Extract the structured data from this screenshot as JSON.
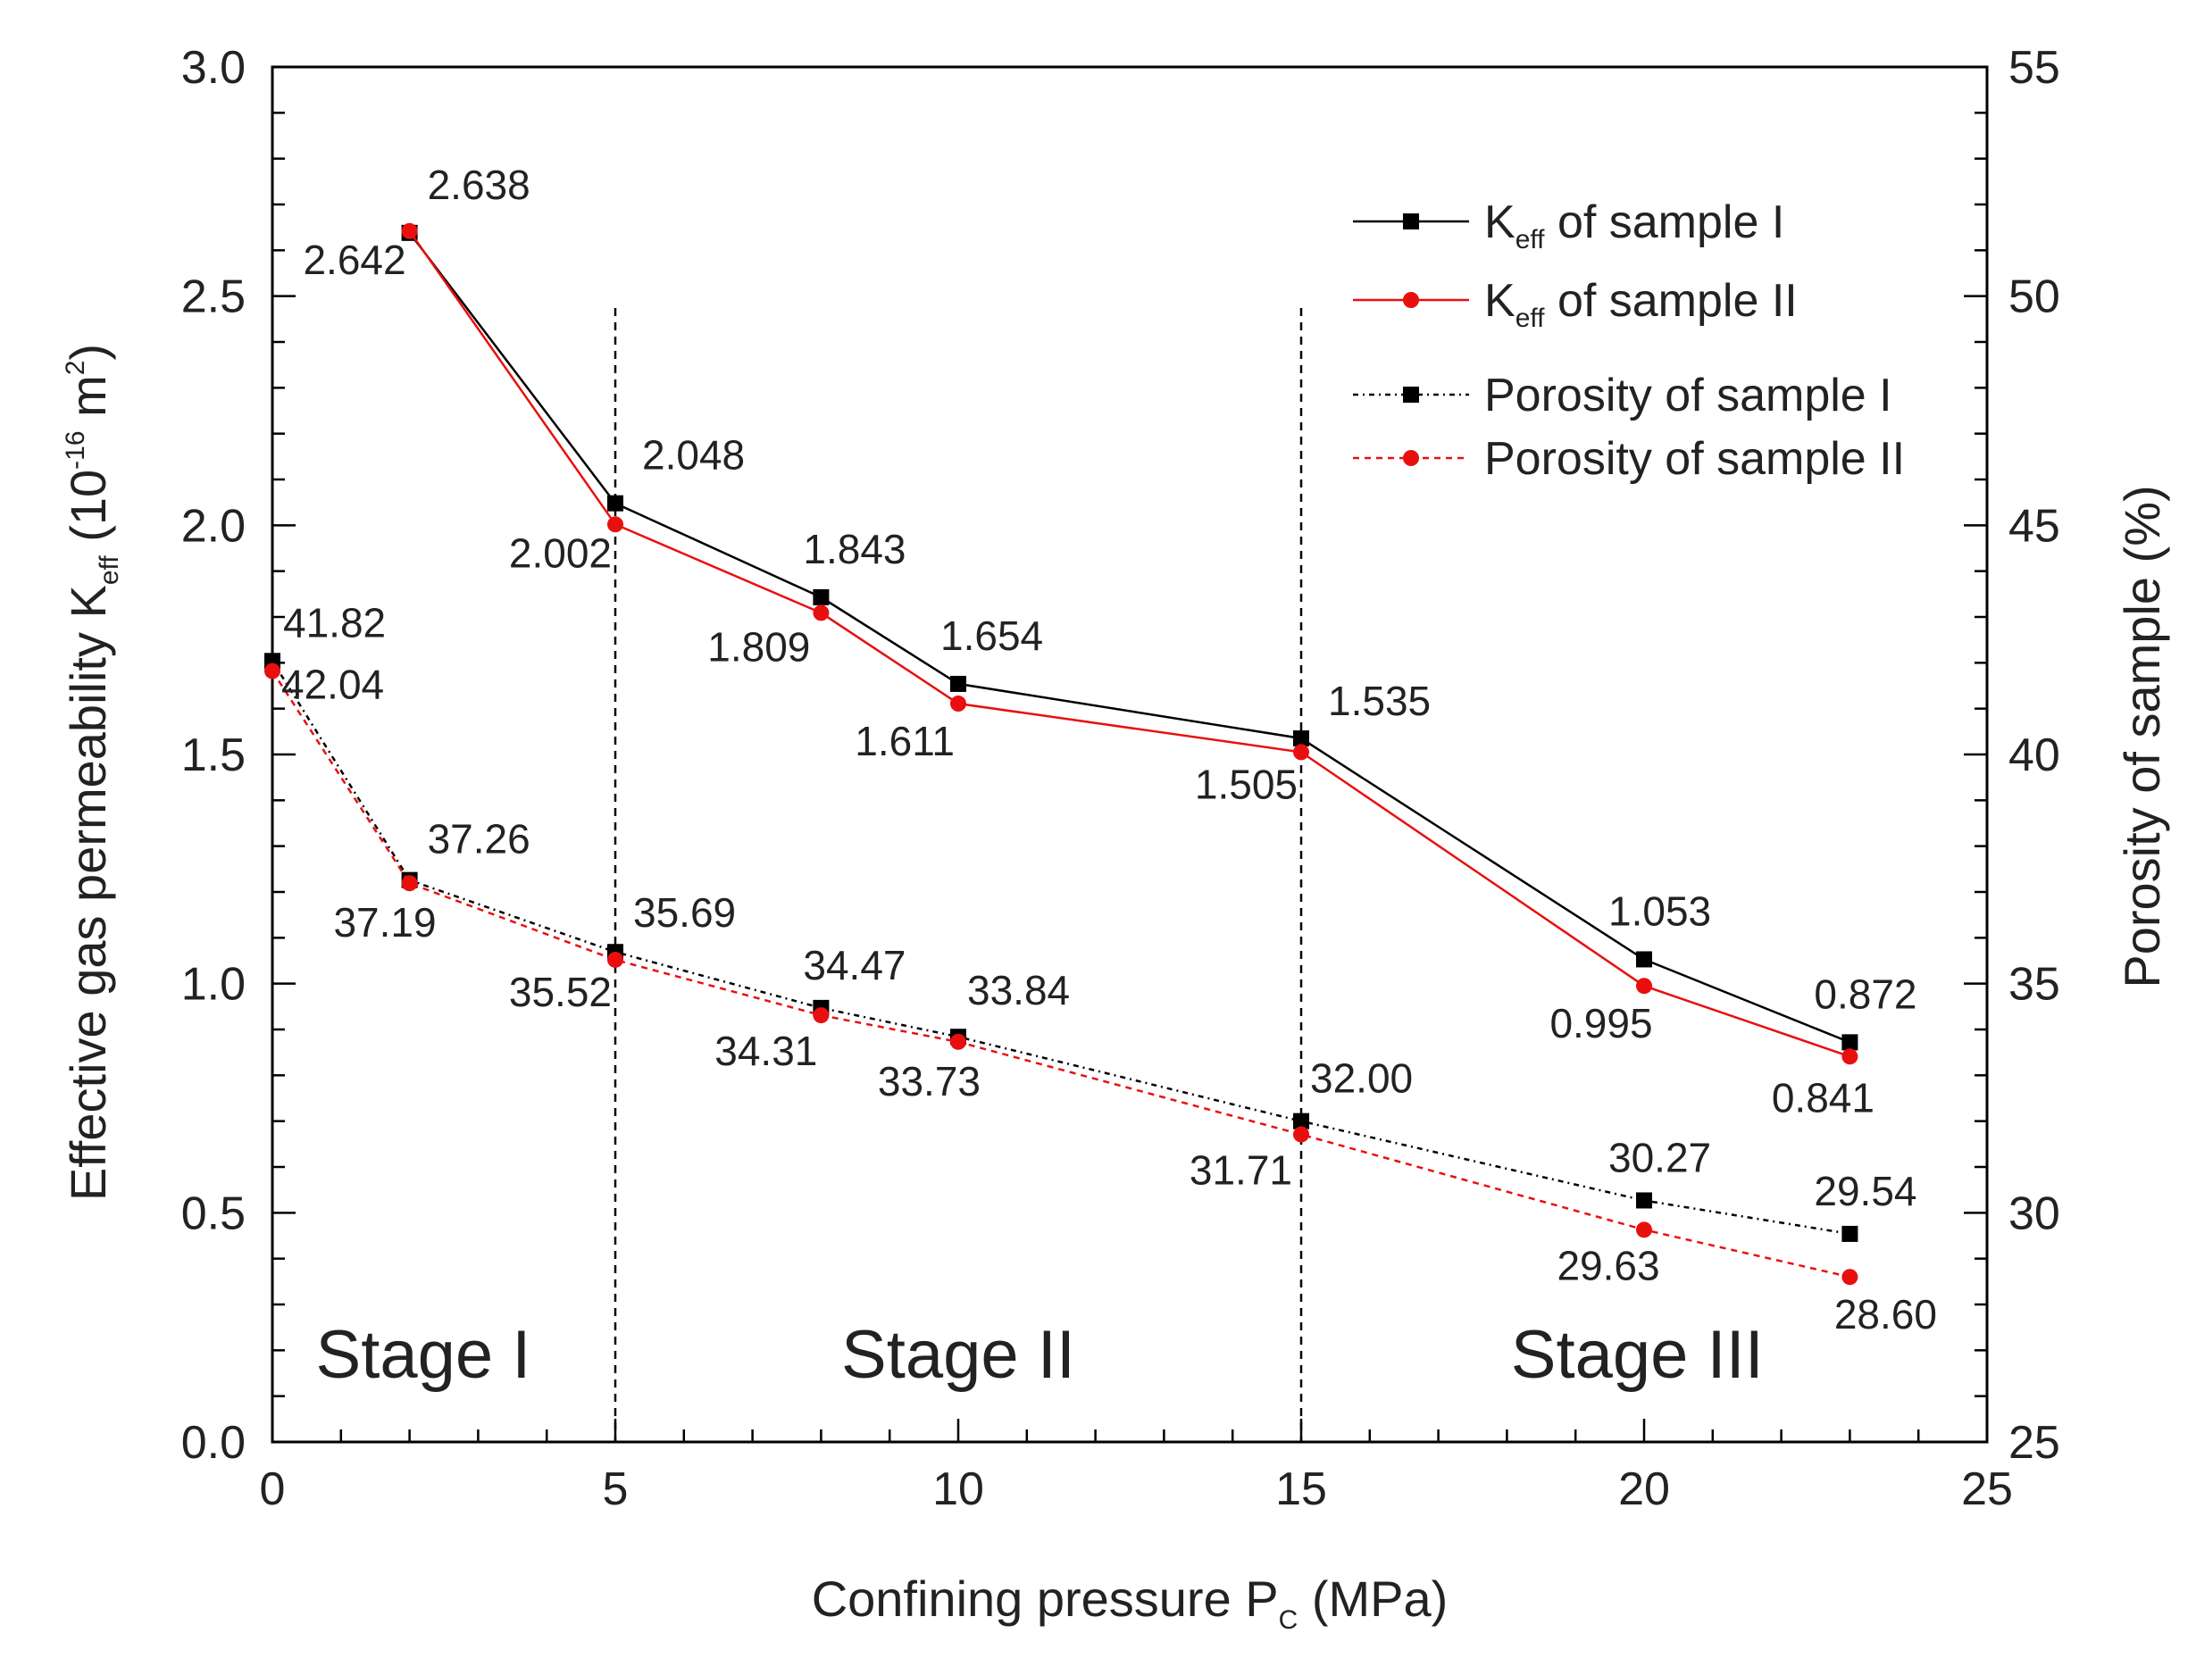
{
  "chart_data": {
    "type": "line",
    "xlabel": "Confining pressure P",
    "xlabel_sub": "C",
    "xlabel_unit": "(MPa)",
    "ylabel_left": {
      "prefix": "Effective gas permeability K",
      "sub": "eff",
      "unit_open": " (10",
      "unit_sup": "-16",
      "unit_mid": " m",
      "unit_sup2": "2",
      "unit_close": ")"
    },
    "ylabel_right": "Porosity of sample (%)",
    "xlim": [
      0,
      25
    ],
    "ylim_left": [
      0.0,
      3.0
    ],
    "ylim_right": [
      25,
      55
    ],
    "x_ticks": [
      "0",
      "5",
      "10",
      "15",
      "20",
      "25"
    ],
    "y_left_ticks": [
      "0.0",
      "0.5",
      "1.0",
      "1.5",
      "2.0",
      "2.5",
      "3.0"
    ],
    "y_right_ticks": [
      "25",
      "30",
      "35",
      "40",
      "45",
      "50",
      "55"
    ],
    "stage_lines": [
      5,
      15
    ],
    "stages": [
      {
        "label": "Stage I",
        "x": 2.2
      },
      {
        "label": "Stage II",
        "x": 10.0
      },
      {
        "label": "Stage III",
        "x": 19.9
      }
    ],
    "series": [
      {
        "name": "K",
        "name_sub": "eff",
        "name_rest": " of sample I",
        "axis": "left",
        "color": "#000000",
        "dash": "solid",
        "marker": "square",
        "x": [
          2,
          5,
          8,
          10,
          15,
          20,
          23
        ],
        "values": [
          2.638,
          2.048,
          1.843,
          1.654,
          1.535,
          1.053,
          0.872
        ],
        "labels": [
          "2.638",
          "2.048",
          "1.843",
          "1.654",
          "1.535",
          "1.053",
          "0.872"
        ]
      },
      {
        "name": "K",
        "name_sub": "eff",
        "name_rest": " of sample II",
        "axis": "left",
        "color": "#e8100e",
        "dash": "solid",
        "marker": "circle",
        "x": [
          2,
          5,
          8,
          10,
          15,
          20,
          23
        ],
        "values": [
          2.642,
          2.002,
          1.809,
          1.611,
          1.505,
          0.995,
          0.841
        ],
        "labels": [
          "2.642",
          "2.002",
          "1.809",
          "1.611",
          "1.505",
          "0.995",
          "0.841"
        ]
      },
      {
        "name": "Porosity of sample I",
        "axis": "right",
        "color": "#000000",
        "dash": "dotted",
        "marker": "square",
        "x": [
          0,
          2,
          5,
          8,
          10,
          15,
          20,
          23
        ],
        "values": [
          42.04,
          37.26,
          35.69,
          34.47,
          33.84,
          32.0,
          30.27,
          29.54
        ],
        "labels": [
          "42.04",
          "37.26",
          "35.69",
          "34.47",
          "33.84",
          "32.00",
          "30.27",
          "29.54"
        ]
      },
      {
        "name": "Porosity of sample II",
        "axis": "right",
        "color": "#e8100e",
        "dash": "dotted",
        "marker": "circle",
        "x": [
          0,
          2,
          5,
          8,
          10,
          15,
          20,
          23
        ],
        "values": [
          41.82,
          37.19,
          35.52,
          34.31,
          33.73,
          31.71,
          29.63,
          28.6
        ],
        "labels": [
          "41.82",
          "37.19",
          "35.52",
          "34.31",
          "33.73",
          "31.71",
          "29.63",
          "28.60"
        ]
      }
    ],
    "legend_position": "top-right",
    "grid": false
  }
}
